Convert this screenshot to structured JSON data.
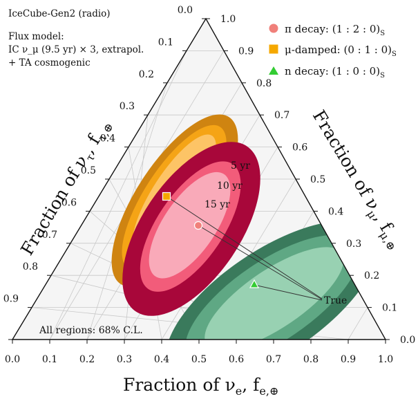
{
  "info": {
    "experiment": "IceCube-Gen2 (radio)",
    "flux_lines": [
      "Flux model:",
      "IC ν_μ (9.5 yr) × 3, extrapol.",
      "+ TA cosmogenic"
    ]
  },
  "legend": [
    {
      "text": "π decay: (1 : 2 : 0)",
      "sub": "S",
      "marker": "circle",
      "color": "#f0807a"
    },
    {
      "text": "μ-damped: (0 : 1 : 0)",
      "sub": "S",
      "marker": "square",
      "color": "#f5a800"
    },
    {
      "text": "n decay: (1 : 0 : 0)",
      "sub": "S",
      "marker": "triangle",
      "color": "#33cc33"
    }
  ],
  "axis_titles": {
    "e": {
      "main": "Fraction of ν",
      "sub1": "e",
      "mid": ", f",
      "sub2": "e,⊕"
    },
    "mu": {
      "main": "Fraction of ν",
      "sub1": "μ",
      "mid": ", f",
      "sub2": "μ,⊕"
    },
    "tau": {
      "main": "Fraction of ν",
      "sub1": "τ",
      "mid": ", f",
      "sub2": "τ,⊕"
    }
  },
  "tick_labels": [
    "0.0",
    "0.1",
    "0.2",
    "0.3",
    "0.4",
    "0.5",
    "0.6",
    "0.7",
    "0.8",
    "0.9",
    "1.0"
  ],
  "year_labels": [
    "5 yr",
    "10 yr",
    "15 yr"
  ],
  "true_label": "True",
  "cl_note": "All regions: 68% C.L.",
  "colors": {
    "orange_outer": "#cf8411",
    "orange_mid": "#f5a416",
    "orange_inner": "#fdc466",
    "red_outer": "#a8073a",
    "red_mid": "#f25c7a",
    "red_inner": "#f9aab9",
    "green_outer": "#3a7a5c",
    "green_mid": "#5fa884",
    "green_inner": "#98d1b2",
    "triangle_fill": "#f5f5f5",
    "grid": "#c8c8c8"
  },
  "chart_data": {
    "type": "ternary",
    "axes": [
      "f_e",
      "f_mu",
      "f_tau"
    ],
    "range": [
      0,
      1
    ],
    "ticks": [
      0,
      0.1,
      0.2,
      0.3,
      0.4,
      0.5,
      0.6,
      0.7,
      0.8,
      0.9,
      1.0
    ],
    "points": [
      {
        "name": "π decay",
        "f_e": 0.33,
        "f_mu": 0.35,
        "f_tau": 0.32
      },
      {
        "name": "μ-damped",
        "f_e": 0.18,
        "f_mu": 0.43,
        "f_tau": 0.39
      },
      {
        "name": "n decay",
        "f_e": 0.55,
        "f_mu": 0.17,
        "f_tau": 0.28
      }
    ],
    "regions": [
      {
        "source": "μ-damped",
        "center": {
          "f_e": 0.16,
          "f_mu": 0.48,
          "f_tau": 0.36
        }
      },
      {
        "source": "π decay",
        "years": [
          5,
          10,
          15
        ],
        "center": {
          "f_e": 0.33,
          "f_mu": 0.37,
          "f_tau": 0.3
        }
      },
      {
        "source": "n decay",
        "center": {
          "f_e": 0.58,
          "f_mu": 0.12,
          "f_tau": 0.3
        }
      }
    ],
    "confidence_level": "68%"
  }
}
